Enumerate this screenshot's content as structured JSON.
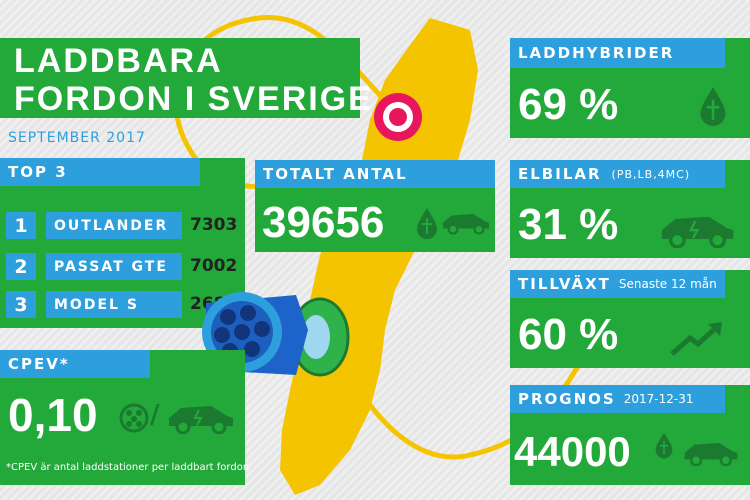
{
  "title": {
    "line1": "LADDBARA",
    "line2": "FORDON I SVERIGE",
    "date": "SEPTEMBER 2017"
  },
  "top3": {
    "label": "TOP 3",
    "items": [
      {
        "rank": "1",
        "name": "OUTLANDER",
        "value": "7303"
      },
      {
        "rank": "2",
        "name": "PASSAT GTE",
        "value": "7002"
      },
      {
        "rank": "3",
        "name": "MODEL S",
        "value": "2685"
      }
    ]
  },
  "total": {
    "label": "TOTALT ANTAL",
    "value": "39656"
  },
  "cpev": {
    "label": "CPEV*",
    "value": "0,10",
    "slash": "/",
    "footnote": "*CPEV är antal laddstationer per laddbart fordon"
  },
  "hybrid": {
    "label": "LADDHYBRIDER",
    "value": "69 %"
  },
  "ev": {
    "label": "ELBILAR",
    "sublabel": "(PB,LB,4MC)",
    "value": "31 %"
  },
  "growth": {
    "label": "TILLVÄXT",
    "sublabel": "Senaste 12 mån",
    "value": "60 %"
  },
  "forecast": {
    "label": "PROGNOS",
    "sublabel": "2017-12-31",
    "value": "44000"
  },
  "colors": {
    "green": "#22a93a",
    "blue": "#2e9fdd",
    "yellow": "#f5c400",
    "pink": "#e8175d"
  },
  "icons": [
    "hybrid-car-icon",
    "electric-car-icon",
    "fuel-drop-icon",
    "trend-up-icon",
    "charging-plug-icon",
    "sweden-map-icon"
  ]
}
